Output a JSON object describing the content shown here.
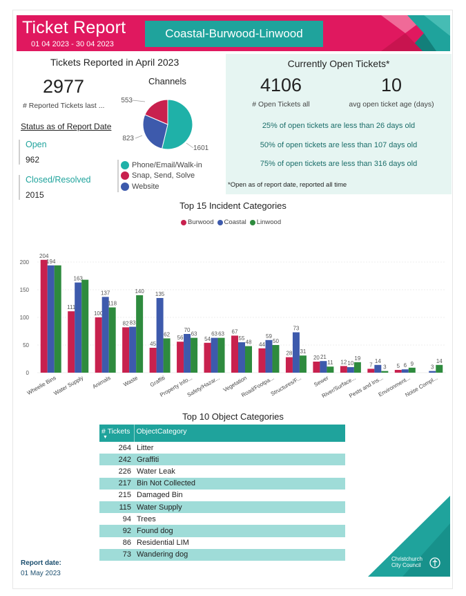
{
  "header": {
    "title": "Ticket Report",
    "dates": "01 04 2023 - 30 04 2023",
    "area": "Coastal-Burwood-Linwood",
    "colors": {
      "primary": "#e0185f",
      "accent": "#1fa39c"
    }
  },
  "reported": {
    "title": "Tickets Reported in April 2023",
    "total": "2977",
    "total_caption": "# Reported Tickets last ...",
    "status_heading": "Status as of Report Date",
    "open_label": "Open",
    "open_value": "962",
    "closed_label": "Closed/Resolved",
    "closed_value": "2015"
  },
  "channels": {
    "title": "Channels",
    "slices": [
      {
        "name": "Phone/Email/Walk-in",
        "value": 1601,
        "label": "1601",
        "color": "#1fb1a8"
      },
      {
        "name": "Snap, Send, Solve",
        "value": 553,
        "label": "553",
        "color": "#c8214e"
      },
      {
        "name": "Website",
        "value": 823,
        "label": "823",
        "color": "#3d5aac"
      }
    ]
  },
  "open_tickets": {
    "title": "Currently Open Tickets*",
    "count": "4106",
    "count_caption": "# Open Tickets all",
    "avg_age": "10",
    "avg_age_caption": "avg open ticket age (days)",
    "percentiles": [
      "25% of open tickets are less than 26 days old",
      "50% of open tickets are less than 107 days old",
      "75% of open tickets are less than 316 days old"
    ],
    "note": "*Open as of report date, reported all time"
  },
  "chart_data": {
    "type": "bar",
    "title": "Top 15 Incident Categories",
    "categories": [
      "Wheelie Bins",
      "Water Supply",
      "Animals",
      "Waste",
      "Graffiti",
      "Property Info...",
      "Safety/Hazar...",
      "Vegetation",
      "Road/Footpa...",
      "Structures/F...",
      "Sewer",
      "River/Surface...",
      "Pests and Ins...",
      "Environment...",
      "Noise Compl..."
    ],
    "series": [
      {
        "name": "Burwood",
        "color": "#c8214e",
        "values": [
          204,
          111,
          100,
          82,
          45,
          56,
          54,
          67,
          44,
          28,
          20,
          12,
          7,
          5,
          0
        ]
      },
      {
        "name": "Coastal",
        "color": "#3d5aac",
        "values": [
          194,
          163,
          137,
          83,
          135,
          70,
          63,
          55,
          59,
          73,
          21,
          10,
          14,
          6,
          3
        ]
      },
      {
        "name": "Linwood",
        "color": "#2e8b3e",
        "values": [
          194,
          168,
          118,
          140,
          62,
          63,
          63,
          48,
          50,
          31,
          11,
          19,
          3,
          9,
          14
        ]
      }
    ],
    "data_labels": [
      [
        "204",
        "111",
        "100",
        "82",
        "45",
        "56",
        "54",
        "67",
        "44",
        "28",
        "20",
        "12",
        "7",
        "5",
        ""
      ],
      [
        "194",
        "163",
        "137",
        "83",
        "135",
        "70",
        "63",
        "55",
        "59",
        "73",
        "21",
        "10",
        "14",
        "6",
        "3"
      ],
      [
        "",
        "",
        "118",
        "140",
        "62",
        "63",
        "63",
        "48",
        "50",
        "31",
        "11",
        "19",
        "3",
        "9",
        "14"
      ]
    ],
    "yticks": [
      "0",
      "50",
      "100",
      "150",
      "200"
    ],
    "ylim": [
      0,
      220
    ],
    "legend_position": "top-center"
  },
  "object_table": {
    "title": "Top 10 Object Categories",
    "headers": [
      "# Tickets",
      "ObjectCategory"
    ],
    "rows": [
      [
        "264",
        "Litter"
      ],
      [
        "242",
        "Graffiti"
      ],
      [
        "226",
        "Water Leak"
      ],
      [
        "217",
        "Bin Not Collected"
      ],
      [
        "215",
        "Damaged Bin"
      ],
      [
        "115",
        "Water Supply"
      ],
      [
        "94",
        "Trees"
      ],
      [
        "92",
        "Found dog"
      ],
      [
        "86",
        "Residential LIM"
      ],
      [
        "73",
        "Wandering dog"
      ]
    ]
  },
  "footer": {
    "report_date_label": "Report date:",
    "report_date": "01 May 2023",
    "logo_line1": "Christchurch",
    "logo_line2": "City Council"
  }
}
